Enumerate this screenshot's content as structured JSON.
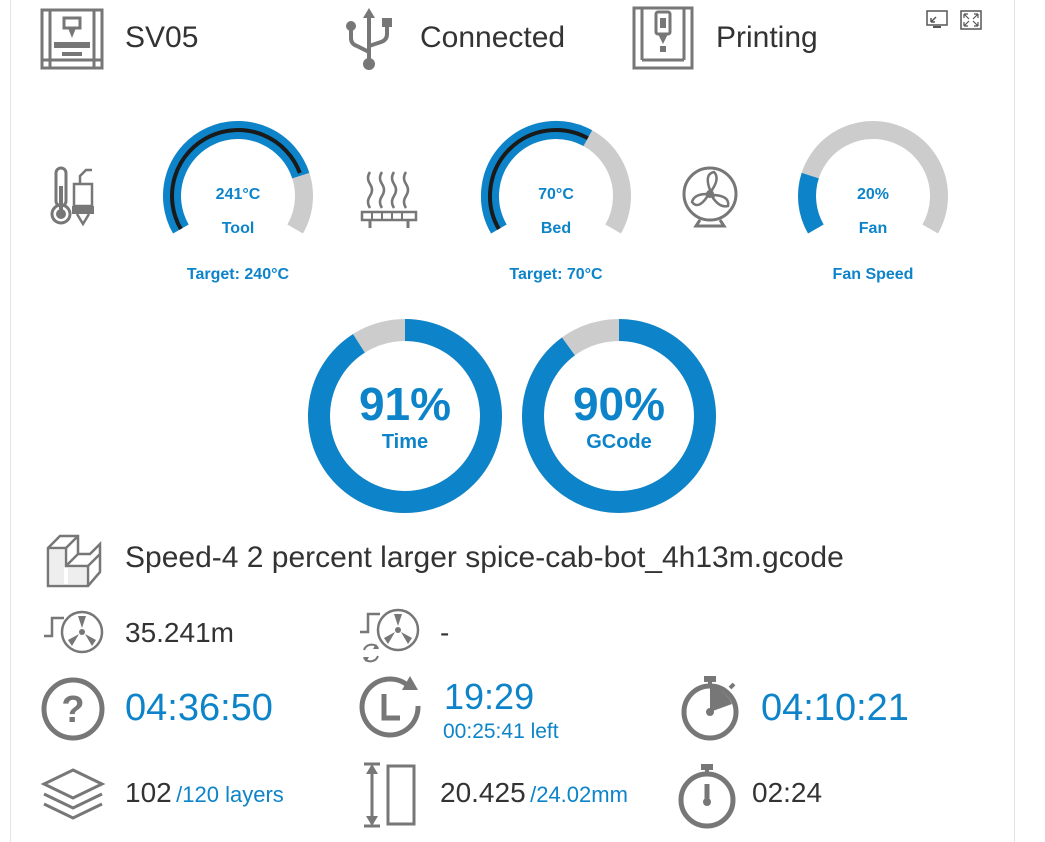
{
  "header": {
    "printer_name": "SV05",
    "connection_status": "Connected",
    "print_status": "Printing"
  },
  "gauges": {
    "tool": {
      "value": "241°C",
      "label": "Tool",
      "caption": "Target: 240°C",
      "fraction": 0.8,
      "target_fraction": 0.79
    },
    "bed": {
      "value": "70°C",
      "label": "Bed",
      "caption": "Target: 70°C",
      "fraction": 0.62,
      "target_fraction": 0.62
    },
    "fan": {
      "value": "20%",
      "label": "Fan",
      "caption": "Fan Speed",
      "fraction": 0.2
    }
  },
  "progress": {
    "time": {
      "value": "91%",
      "label": "Time",
      "fraction": 0.91
    },
    "gcode": {
      "value": "90%",
      "label": "GCode",
      "fraction": 0.9
    }
  },
  "file": {
    "name": "Speed-4 2 percent larger spice-cab-bot_4h13m.gcode"
  },
  "filament": {
    "used": "35.241m",
    "changes": "-"
  },
  "times": {
    "estimated_total": "04:36:50",
    "eta_clock": "19:29",
    "eta_left": "00:25:41 left",
    "elapsed": "04:10:21"
  },
  "layers": {
    "current": "102",
    "total": "/120 layers"
  },
  "height": {
    "current": "20.425",
    "total": "/24.02mm"
  },
  "layer_time": "02:24",
  "colors": {
    "accent": "#0d84c9",
    "track": "#cccccc",
    "icon": "#777777",
    "text": "#333333"
  }
}
